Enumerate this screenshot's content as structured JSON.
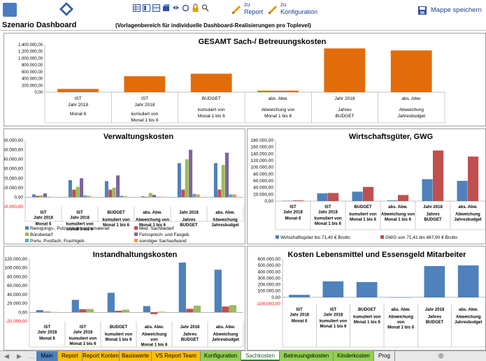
{
  "toolbar": {
    "report_sup": "zu",
    "report_label": "Report",
    "config_sup": "zu",
    "config_label": "Konfiguration",
    "save_label": "Mappe speichern"
  },
  "header": {
    "title": "Szenario Dashboard",
    "subtitle": "(Vorlagenbereich für individuelle Dashboard-Realisierungen pro Toplevel)"
  },
  "colors": {
    "orange": "#e36c0a",
    "blue": "#4f81bd",
    "red": "#c0504d",
    "green": "#9bbb59",
    "purple": "#8064a2",
    "lightblue": "#4bacc6",
    "lightorange": "#f79646"
  },
  "tabs": [
    {
      "label": "Main",
      "color": "#4f81bd"
    },
    {
      "label": "Report",
      "color": "#ffc000"
    },
    {
      "label": "Report Konten",
      "color": "#ffc000"
    },
    {
      "label": "Basiswerte",
      "color": "#ffc000"
    },
    {
      "label": "VS Report Team",
      "color": "#ffc000"
    },
    {
      "label": "Konfiguration",
      "color": "#92d050"
    },
    {
      "label": "Sachkosten",
      "color": "#ffffff"
    },
    {
      "label": "Betreuungskosten",
      "color": "#92d050"
    },
    {
      "label": "Kinderkosten",
      "color": "#92d050"
    },
    {
      "label": "Prog",
      "color": "#e8e8e8"
    }
  ],
  "chart_data": [
    {
      "type": "bar",
      "title": "GESAMT Sach-/ Betreuungskosten",
      "categories": [
        [
          "IST",
          "Jahr 2018",
          "Monat 6"
        ],
        [
          "IST",
          "Jahr 2018",
          "kumuliert von",
          "Monat 1 bis 6"
        ],
        [
          "BUDGET",
          "",
          "kumuliert von",
          "Monat 1 bis 6"
        ],
        [
          "abs. Abw.",
          "",
          "Abweichung von",
          "Monat 1 bis 6"
        ],
        [
          "Jahr 2018",
          "",
          "Jahres",
          "BUDGET"
        ],
        [
          "abs. Abw.",
          "",
          "Abweichung",
          "Jahresbudget"
        ]
      ],
      "ticks": [
        "0,00",
        "200.000,00",
        "400.000,00",
        "600.000,00",
        "800.000,00",
        "1.000.000,00",
        "1.200.000,00",
        "1.400.000,00"
      ],
      "ylim": [
        0,
        1400000
      ],
      "series": [
        {
          "values": [
            95000,
            470000,
            545000,
            45000,
            1290000,
            1230000
          ]
        }
      ]
    },
    {
      "type": "bar",
      "title": "Verwaltungskosten",
      "categories": [
        [
          "IST",
          "Jahr 2018",
          "Monat 6"
        ],
        [
          "IST",
          "Jahr 2018",
          "kumuliert von",
          "Monat 1 bis 6"
        ],
        [
          "BUDGET",
          "",
          "kumuliert von",
          "Monat 1 bis 6"
        ],
        [
          "abs. Abw.",
          "",
          "Abweichung von",
          "Monat 1 bis 6"
        ],
        [
          "Jahr 2018",
          "",
          "Jahres",
          "BUDGET"
        ],
        [
          "abs. Abw.",
          "",
          "Abweichung",
          "Jahresbudget"
        ]
      ],
      "ticks": [
        "-10.000,00",
        "0,00",
        "10.000,00",
        "20.000,00",
        "30.000,00",
        "40.000,00",
        "50.000,00",
        "60.000,00"
      ],
      "ylim": [
        -10000,
        60000
      ],
      "series": [
        {
          "name": "Reinigungs-, Putz-, Verbrauchsmaterial",
          "values": [
            3000,
            18000,
            17000,
            1000,
            36000,
            36000
          ]
        },
        {
          "name": "Med. Sachbedarf",
          "values": [
            1500,
            8000,
            8000,
            -500,
            8000,
            8000
          ]
        },
        {
          "name": "Bürobedarf",
          "values": [
            2000,
            11000,
            10000,
            4500,
            40000,
            34000
          ]
        },
        {
          "name": "Fernsprech- und Faxgeb.",
          "values": [
            4000,
            20000,
            23000,
            2500,
            50000,
            47000
          ]
        },
        {
          "name": "Porto, Postfach, Frachtgeb.",
          "values": [
            500,
            2000,
            1500,
            500,
            3500,
            3000
          ]
        },
        {
          "name": "sonstiger Sachaufwand",
          "values": [
            300,
            1500,
            1000,
            500,
            3000,
            3000
          ]
        }
      ]
    },
    {
      "type": "bar",
      "title": "Wirtschaftsgüter, GWG",
      "categories": [
        [
          "IST",
          "Jahr 2018",
          "Monat 6"
        ],
        [
          "IST",
          "Jahr 2018",
          "kumuliert von",
          "Monat 1 bis 6"
        ],
        [
          "BUDGET",
          "",
          "kumuliert von",
          "Monat 1 bis 6"
        ],
        [
          "abs. Abw.",
          "",
          "Abweichung von",
          "Monat 1 bis 6"
        ],
        [
          "Jahr 2018",
          "",
          "Jahres",
          "BUDGET"
        ],
        [
          "abs. Abw.",
          "",
          "Abweichung",
          "Jahresbudget"
        ]
      ],
      "ticks": [
        "0,00",
        "20.000,00",
        "40.000,00",
        "60.000,00",
        "80.000,00",
        "100.000,00",
        "120.000,00",
        "140.000,00",
        "160.000,00",
        "180.000,00"
      ],
      "ylim": [
        0,
        180000
      ],
      "series": [
        {
          "name": "Wirtschaftsgüter bis 71,40 € Brutto",
          "values": [
            1000,
            23000,
            28000,
            2000,
            65000,
            60000
          ]
        },
        {
          "name": "GWG von 71,41 bis 487,90 € Brutto",
          "values": [
            2000,
            24000,
            42000,
            18000,
            150000,
            132000
          ]
        }
      ]
    },
    {
      "type": "bar",
      "title": "Instandhaltungskosten",
      "categories": [
        [
          "IST",
          "Jahr 2018",
          "Monat 6"
        ],
        [
          "IST",
          "Jahr 2018",
          "kumuliert von",
          "Monat 1 bis 6"
        ],
        [
          "BUDGET",
          "",
          "kumuliert von",
          "Monat 1 bis 6"
        ],
        [
          "abs. Abw.",
          "",
          "Abweichung",
          "von",
          "Monat 1 bis 6"
        ],
        [
          "Jahr 2018",
          "",
          "Jahres",
          "BUDGET"
        ],
        [
          "abs. Abw.",
          "",
          "Abweichung",
          "Jahresbudget"
        ]
      ],
      "ticks": [
        "-20.000,00",
        "0,00",
        "20.000,00",
        "40.000,00",
        "60.000,00",
        "80.000,00",
        "100.000,00",
        "120.000,00"
      ],
      "ylim": [
        -20000,
        120000
      ],
      "series": [
        {
          "values": [
            5000,
            28000,
            44000,
            14000,
            112000,
            96000
          ]
        },
        {
          "values": [
            1500,
            7000,
            3500,
            -4000,
            8000,
            13000
          ]
        },
        {
          "values": [
            800,
            7500,
            6000,
            1500,
            15000,
            16000
          ]
        }
      ]
    },
    {
      "type": "bar",
      "title": "Kosten Lebensmittel und Essensgeld Mitarbeiter",
      "categories": [
        [
          "IST",
          "Jahr 2018",
          "Monat 6"
        ],
        [
          "IST",
          "Jahr 2018",
          "kumuliert von",
          "Monat 1 bis 6"
        ],
        [
          "BUDGET",
          "",
          "kumuliert von",
          "Monat 1 bis 6"
        ],
        [
          "abs. Abw.",
          "",
          "Abweichung",
          "von",
          "Monat 1 bis 6"
        ],
        [
          "Jahr 2018",
          "",
          "Jahres",
          "BUDGET"
        ],
        [
          "abs. Abw.",
          "",
          "Abweichung",
          "Jahresbudget"
        ]
      ],
      "ticks": [
        "-100.000,00",
        "0,00",
        "100.000,00",
        "200.000,00",
        "300.000,00",
        "400.000,00",
        "500.000,00",
        "600.000,00"
      ],
      "ylim": [
        -100000,
        600000
      ],
      "series": [
        {
          "values": [
            40000,
            250000,
            240000,
            -5000,
            490000,
            500000
          ]
        }
      ]
    }
  ]
}
